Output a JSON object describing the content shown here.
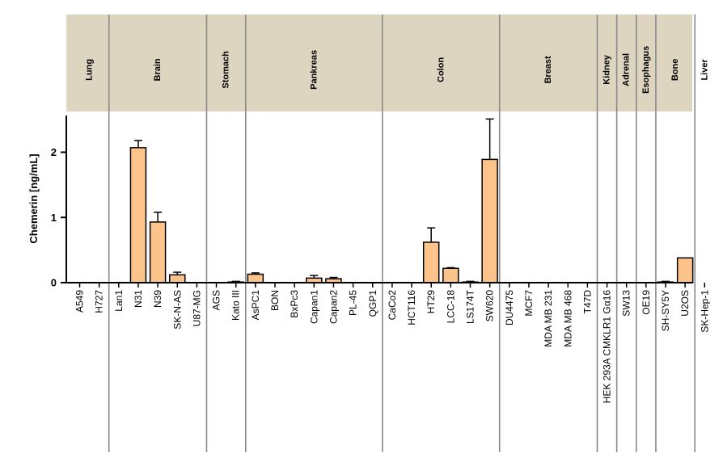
{
  "chart_data": {
    "type": "bar",
    "ylabel": "Chemerin [ng/mL]",
    "ylim": [
      0,
      2.55
    ],
    "yticks": [
      0,
      1,
      2
    ],
    "grid": false,
    "colors": {
      "bar": "#fcc38a",
      "bar_stroke": "#000000",
      "header": "#ded5c0",
      "divider": "#8a8a8a"
    },
    "groups": [
      {
        "name": "Lung",
        "count": 2
      },
      {
        "name": "Brain",
        "count": 5
      },
      {
        "name": "Stomach",
        "count": 2
      },
      {
        "name": "Pankreas",
        "count": 7
      },
      {
        "name": "Colon",
        "count": 6
      },
      {
        "name": "Breast",
        "count": 5
      },
      {
        "name": "Kidney",
        "count": 1
      },
      {
        "name": "Adrenal",
        "count": 1
      },
      {
        "name": "Esophagus",
        "count": 1
      },
      {
        "name": "Bone",
        "count": 2
      },
      {
        "name": "Liver",
        "count": 1
      }
    ],
    "categories": [
      "A549",
      "H727",
      "Lan1",
      "N31",
      "N39",
      "SK-N-AS",
      "U87-MG",
      "AGS",
      "Kato III",
      "AsPC1",
      "BON",
      "BxPc3",
      "Capan1",
      "Capan2",
      "PL-45",
      "QGP1",
      "CaCo2",
      "HCT116",
      "HT29",
      "LCC-18",
      "LS174T",
      "SW620",
      "DU4475",
      "MCF7",
      "MDA MB 231",
      "MDA MB 468",
      "T47D",
      "HEK 293A CMKLR1 Gα16",
      "SW13",
      "OE19",
      "SH-SY5Y",
      "U2OS",
      "SK-Hep-1"
    ],
    "values": [
      0,
      0,
      0,
      2.07,
      0.93,
      0.12,
      0,
      0,
      0.01,
      0.13,
      0,
      0,
      0.07,
      0.06,
      0,
      0,
      0,
      0,
      0.62,
      0.22,
      0.01,
      1.89,
      0,
      0,
      0,
      0,
      0,
      0,
      0,
      0,
      0.01,
      0.38,
      0
    ],
    "errors": [
      0,
      0,
      0,
      0.11,
      0.15,
      0.04,
      0,
      0,
      0.01,
      0.02,
      0,
      0,
      0.04,
      0.02,
      0,
      0,
      0,
      0,
      0.22,
      0.01,
      0.01,
      0.62,
      0,
      0,
      0,
      0,
      0,
      0,
      0,
      0,
      0.01,
      0,
      0
    ]
  }
}
